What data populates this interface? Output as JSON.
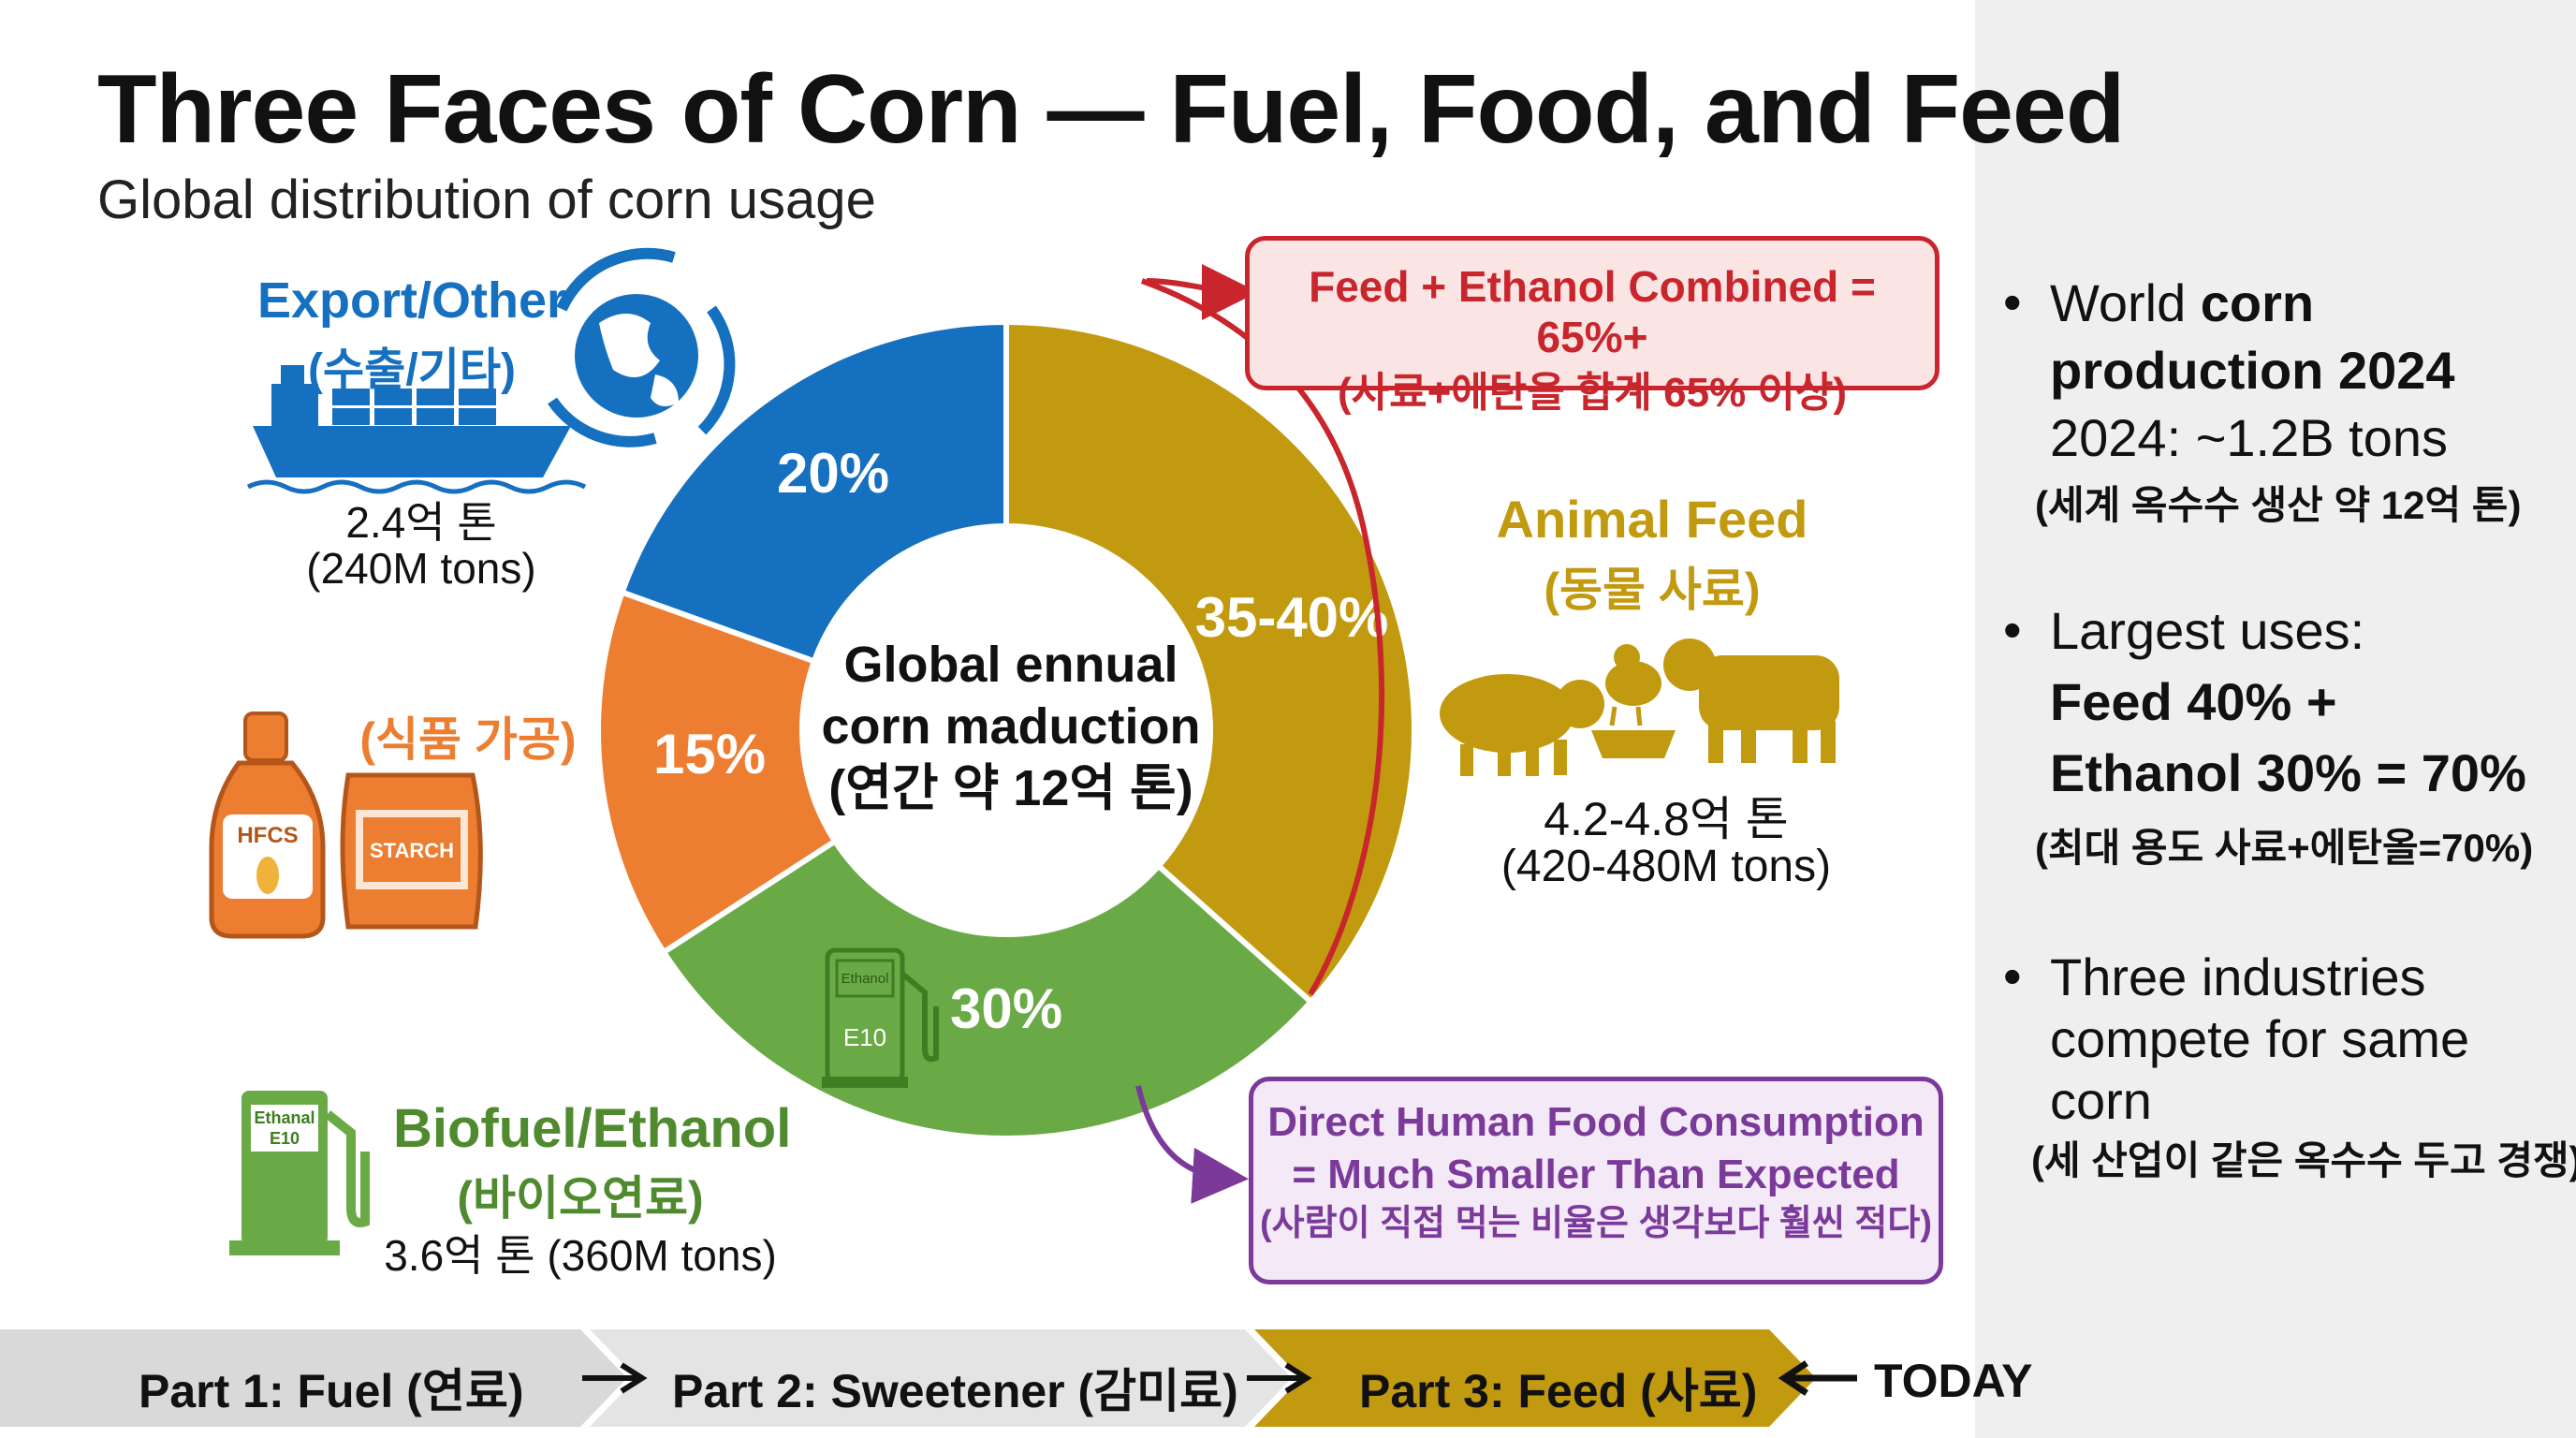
{
  "header": {
    "title": "Three Faces of Corn — Fuel, Food, and Feed",
    "subtitle": "Global distribution of corn usage"
  },
  "colors": {
    "feed": "#c29a10",
    "ethanol": "#6aaa46",
    "food": "#ec7d31",
    "export": "#1670c0",
    "red": "#c8262c",
    "purple": "#7b3a9a"
  },
  "chart_data": {
    "type": "pie",
    "donut": true,
    "center_label": [
      "Global ennual",
      "corn maduction",
      "(연간 약 12억 톤)"
    ],
    "slices": [
      {
        "label": "35-40%",
        "value": 37.5
      },
      {
        "label": "30%",
        "value": 30
      },
      {
        "label": "15%",
        "value": 15
      },
      {
        "label": "20%",
        "value": 20
      }
    ]
  },
  "segments": {
    "export": {
      "title": "Export/Other",
      "ko": "(수출/기타)",
      "amount": "2.4억 톤",
      "amount_en": "(240M tons)"
    },
    "food": {
      "ko": "(식품 가공)",
      "hfcs": "HFCS",
      "starch": "STARCH"
    },
    "biofuel": {
      "title": "Biofuel/Ethanol",
      "ko": "(바이오연료)",
      "amount": "3.6억 톤 (360M tons)",
      "pump_label1": "Ethanal",
      "pump_label2": "E10"
    },
    "feed": {
      "title": "Animal Feed",
      "ko": "(동물 사료)",
      "amount": "4.2-4.8억 톤",
      "amount_en": "(420-480M tons)"
    },
    "inner_pump": {
      "label1": "Ethanol",
      "label2": "E10"
    }
  },
  "callouts": {
    "combined": {
      "line1": "Feed + Ethanol Combined = 65%+",
      "line2": "(사료+에탄올 합계 65% 이상)"
    },
    "human": {
      "line1": "Direct Human Food Consumption",
      "line2": "= Much Smaller Than Expected",
      "line3": "(사람이 직접 먹는 비율은 생각보다 훨씬 적다)"
    }
  },
  "sidebar": {
    "b1": {
      "pre": "World ",
      "bold1": "corn",
      "bold2": "production 2024",
      "line3": "2024: ~1.2B tons",
      "ko": "(세계 옥수수 생산 약 12억 톤)"
    },
    "b2": {
      "line1": "Largest uses:",
      "line2": "Feed 40% +",
      "line3": "Ethanol 30% = 70%",
      "ko": "(최대 용도 사료+에탄올=70%)"
    },
    "b3": {
      "line1": "Three industries",
      "line2": "compete for same",
      "line3": "corn",
      "ko": "(세 산업이 같은 옥수수 두고 경쟁)"
    }
  },
  "timeline": {
    "part1": "Part 1: Fuel (연료)",
    "part2": "Part 2: Sweetener (감미료)",
    "part3": "Part 3: Feed (사료)",
    "today": "TODAY"
  }
}
